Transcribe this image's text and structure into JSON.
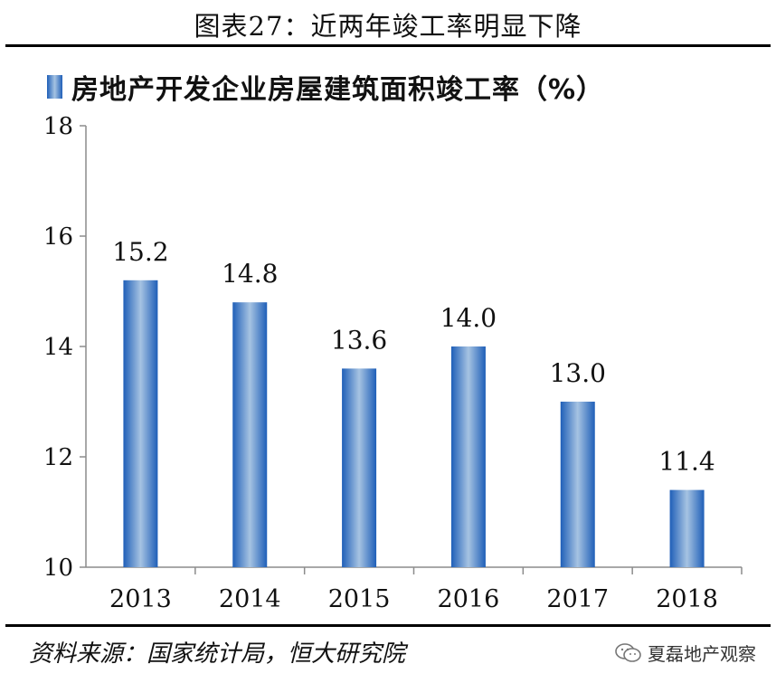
{
  "figure": {
    "title": "图表27：近两年竣工率明显下降",
    "source": "资料来源：国家统计局，恒大研究院",
    "watermark": "夏磊地产观察",
    "watermark_icon": "wechat-icon"
  },
  "chart_data": {
    "type": "bar",
    "title": "",
    "categories": [
      "2013",
      "2014",
      "2015",
      "2016",
      "2017",
      "2018"
    ],
    "series": [
      {
        "name": "房地产开发企业房屋建筑面积竣工率（%）",
        "values": [
          15.2,
          14.8,
          13.6,
          14.0,
          13.0,
          11.4
        ],
        "labels": [
          "15.2",
          "14.8",
          "13.6",
          "14.0",
          "13.0",
          "11.4"
        ]
      }
    ],
    "ylim": [
      10,
      18
    ],
    "yticks": [
      10,
      12,
      14,
      16,
      18
    ],
    "xlabel": "",
    "ylabel": "",
    "grid": false,
    "legend_position": "top-left",
    "colors": {
      "bar_edge": "#1f5fb8",
      "bar_center": "#a6c3e2",
      "axis": "#8c8c8c"
    }
  }
}
